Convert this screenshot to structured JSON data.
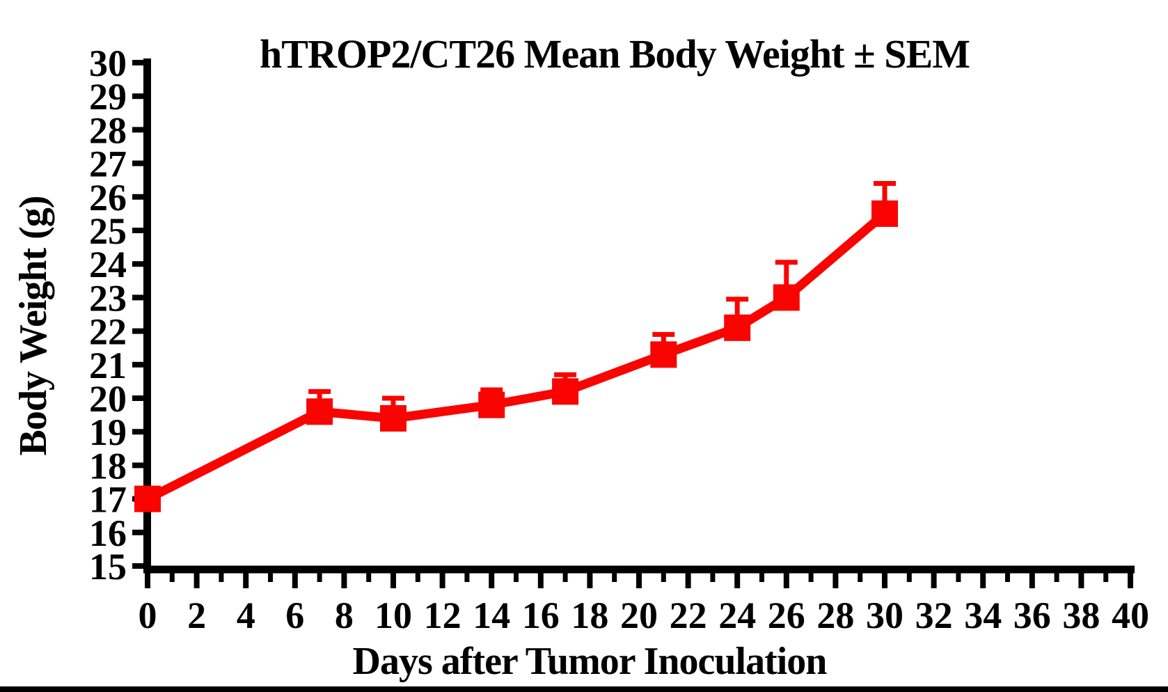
{
  "chart_data": {
    "type": "line",
    "title": "hTROP2/CT26 Mean Body Weight ± SEM",
    "xlabel": "Days after Tumor Inoculation",
    "ylabel": "Body Weight (g)",
    "xlim": [
      0,
      40
    ],
    "ylim": [
      15,
      30
    ],
    "grid": false,
    "legend": "none",
    "error_bars": "upper-only",
    "x_major_tick_step": 2,
    "x_minor_tick_step": 1,
    "y_tick_step": 1,
    "x_tick_labels": [
      "0",
      "2",
      "4",
      "6",
      "8",
      "10",
      "12",
      "14",
      "16",
      "18",
      "20",
      "22",
      "24",
      "26",
      "28",
      "30",
      "32",
      "34",
      "36",
      "38",
      "40"
    ],
    "y_tick_labels": [
      "15",
      "16",
      "17",
      "18",
      "19",
      "20",
      "21",
      "22",
      "23",
      "24",
      "25",
      "26",
      "27",
      "28",
      "29",
      "30"
    ],
    "series": [
      {
        "name": "hTROP2/CT26 mean body weight",
        "marker": "square",
        "color": "#F90400",
        "x": [
          0,
          7,
          10,
          14,
          17,
          21,
          24,
          26,
          30
        ],
        "values": [
          17.0,
          19.6,
          19.4,
          19.8,
          20.2,
          21.3,
          22.1,
          23.0,
          25.5
        ],
        "sem": [
          0,
          0.6,
          0.6,
          0.45,
          0.5,
          0.6,
          0.85,
          1.05,
          0.9
        ]
      }
    ],
    "axis_color": "#000000"
  },
  "footer": {
    "bar_color": "#000000"
  }
}
